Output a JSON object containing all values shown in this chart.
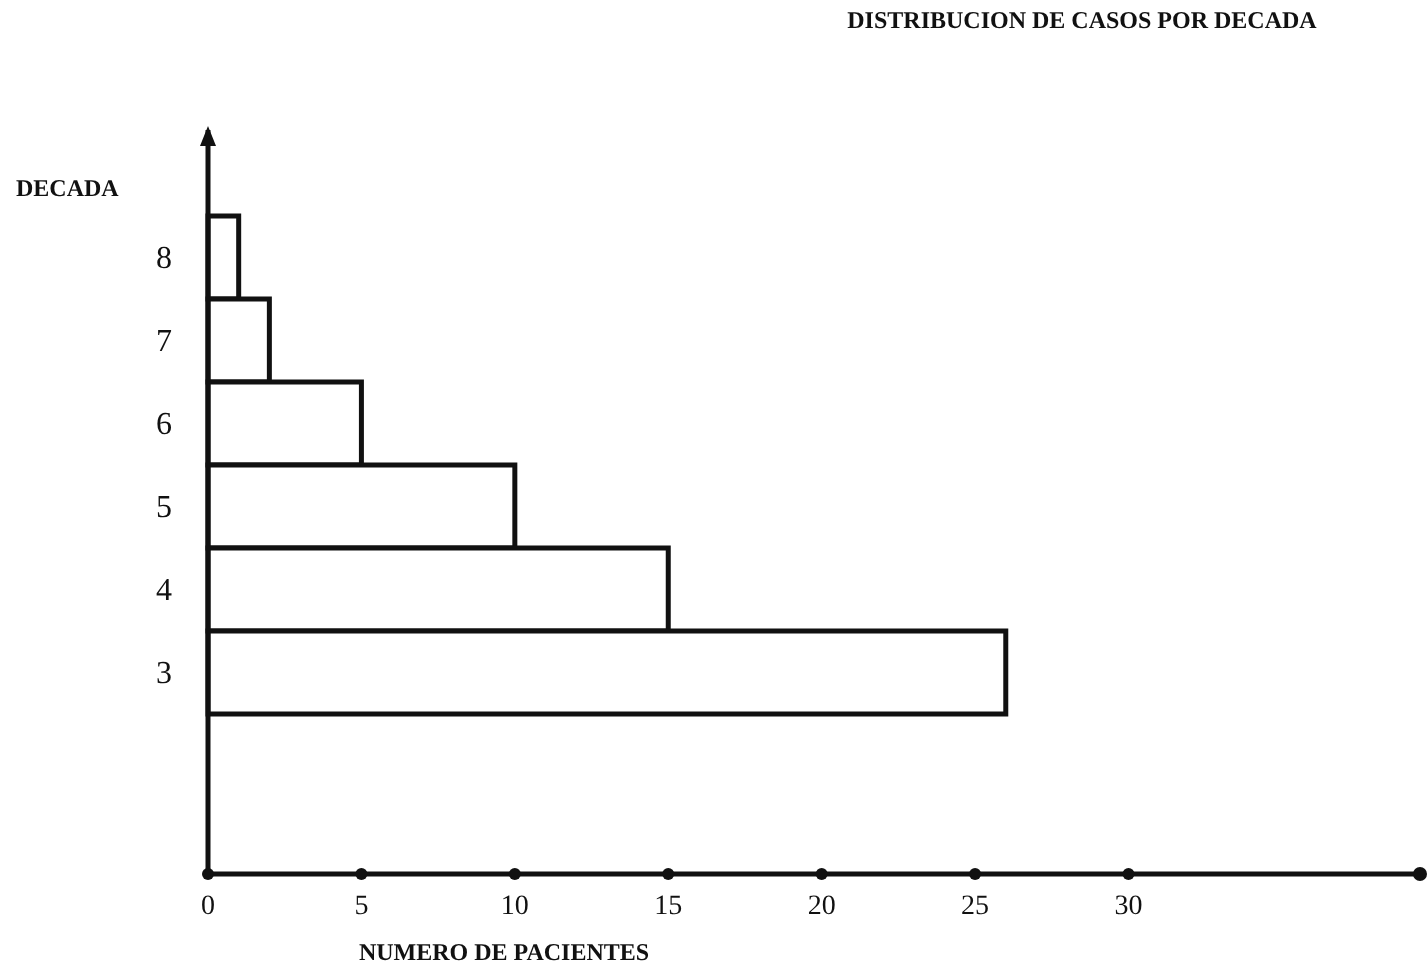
{
  "chart_data": {
    "type": "bar",
    "orientation": "horizontal",
    "title": "DISTRIBUCION DE CASOS POR DECADA",
    "xlabel": "NUMERO DE PACIENTES",
    "ylabel": "DECADA",
    "categories": [
      "8",
      "7",
      "6",
      "5",
      "4",
      "3"
    ],
    "values": [
      1,
      2,
      5,
      10,
      15,
      26
    ],
    "color": "#ffffff",
    "xlim": [
      0,
      39.5
    ],
    "xticks": [
      0,
      5,
      10,
      15,
      20,
      25,
      30
    ]
  }
}
